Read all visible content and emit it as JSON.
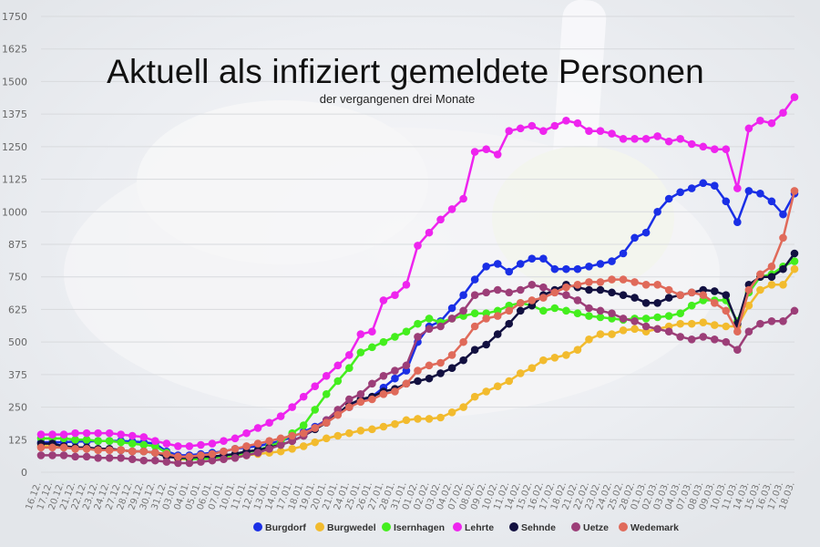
{
  "chart_data": {
    "type": "line",
    "title": "Aktuell als infiziert gemeldete Personen",
    "subtitle": "der vergangenen drei Monate",
    "xlabel": "",
    "ylabel": "",
    "ylim": [
      0,
      1750
    ],
    "yticks": [
      0,
      125,
      250,
      375,
      500,
      625,
      750,
      875,
      1000,
      1125,
      1250,
      1375,
      1500,
      1625,
      1750
    ],
    "grid": true,
    "legend_position": "bottom",
    "x_tick_labels": [
      "16.12.",
      "17.12.",
      "20.12.",
      "21.12.",
      "22.12.",
      "23.12.",
      "24.12.",
      "27.12.",
      "28.12.",
      "29.12.",
      "30.12.",
      "31.12.",
      "03.01.",
      "04.01.",
      "05.01.",
      "06.01.",
      "07.01.",
      "10.01.",
      "11.01.",
      "12.01.",
      "13.01.",
      "14.01.",
      "17.01.",
      "18.01.",
      "19.01.",
      "20.01.",
      "21.01.",
      "24.01.",
      "25.01.",
      "26.01.",
      "27.01.",
      "28.01.",
      "31.01.",
      "01.02.",
      "02.02.",
      "03.02.",
      "04.02.",
      "07.02.",
      "08.02.",
      "09.02.",
      "10.02.",
      "11.02.",
      "14.02.",
      "15.02.",
      "16.02.",
      "17.02.",
      "18.02.",
      "21.02.",
      "22.02.",
      "23.02.",
      "24.02.",
      "25.02.",
      "28.02.",
      "01.03.",
      "02.03.",
      "03.03.",
      "04.03.",
      "07.03.",
      "08.03.",
      "09.03.",
      "10.03.",
      "11.03.",
      "14.03.",
      "15.03.",
      "16.03.",
      "17.03.",
      "18.03."
    ],
    "series": [
      {
        "name": "Burgdorf",
        "color": "#1a2fe6",
        "values": [
          115,
          115,
          115,
          118,
          118,
          120,
          120,
          120,
          118,
          115,
          110,
          80,
          65,
          65,
          70,
          75,
          80,
          90,
          95,
          100,
          110,
          120,
          135,
          155,
          175,
          200,
          225,
          250,
          275,
          290,
          325,
          360,
          390,
          500,
          560,
          580,
          630,
          680,
          740,
          790,
          800,
          770,
          800,
          820,
          820,
          780,
          780,
          780,
          790,
          800,
          810,
          840,
          900,
          920,
          1000,
          1050,
          1075,
          1090,
          1110,
          1100,
          1040,
          960,
          1080,
          1070,
          1040,
          990,
          1070
        ]
      },
      {
        "name": "Burgwedel",
        "color": "#f2bb2e",
        "values": [
          100,
          100,
          95,
          90,
          90,
          85,
          85,
          85,
          80,
          80,
          75,
          70,
          50,
          50,
          55,
          55,
          60,
          60,
          65,
          70,
          75,
          80,
          90,
          100,
          115,
          130,
          140,
          150,
          160,
          165,
          175,
          185,
          200,
          205,
          205,
          210,
          230,
          250,
          290,
          310,
          330,
          350,
          380,
          400,
          430,
          440,
          450,
          470,
          510,
          530,
          530,
          545,
          550,
          540,
          550,
          560,
          570,
          570,
          575,
          565,
          560,
          560,
          640,
          700,
          720,
          720,
          780
        ]
      },
      {
        "name": "Isernhagen",
        "color": "#44ee1e",
        "values": [
          130,
          130,
          130,
          125,
          125,
          120,
          120,
          115,
          110,
          105,
          100,
          75,
          55,
          50,
          50,
          55,
          60,
          65,
          75,
          85,
          100,
          115,
          150,
          180,
          240,
          300,
          350,
          400,
          460,
          480,
          500,
          520,
          540,
          570,
          590,
          575,
          590,
          600,
          610,
          610,
          620,
          640,
          650,
          640,
          620,
          630,
          620,
          610,
          600,
          595,
          590,
          585,
          590,
          590,
          595,
          600,
          610,
          640,
          660,
          660,
          660,
          580,
          690,
          750,
          760,
          790,
          810
        ]
      },
      {
        "name": "Lehrte",
        "color": "#ee24ee",
        "values": [
          145,
          145,
          145,
          150,
          150,
          150,
          150,
          145,
          140,
          135,
          120,
          110,
          100,
          100,
          105,
          110,
          120,
          130,
          150,
          170,
          190,
          215,
          250,
          290,
          330,
          370,
          410,
          450,
          530,
          540,
          660,
          680,
          720,
          870,
          920,
          970,
          1010,
          1050,
          1230,
          1240,
          1220,
          1310,
          1320,
          1330,
          1310,
          1330,
          1350,
          1340,
          1310,
          1310,
          1300,
          1280,
          1280,
          1280,
          1290,
          1270,
          1280,
          1260,
          1250,
          1240,
          1240,
          1090,
          1320,
          1350,
          1340,
          1380,
          1440
        ]
      },
      {
        "name": "Sehnde",
        "color": "#121040",
        "values": [
          110,
          110,
          100,
          95,
          95,
          90,
          90,
          85,
          80,
          80,
          75,
          60,
          55,
          55,
          60,
          60,
          65,
          70,
          80,
          85,
          95,
          105,
          120,
          140,
          165,
          190,
          225,
          260,
          280,
          290,
          310,
          320,
          340,
          350,
          360,
          380,
          400,
          430,
          470,
          490,
          530,
          570,
          620,
          640,
          680,
          700,
          720,
          710,
          700,
          700,
          690,
          680,
          670,
          650,
          650,
          670,
          680,
          690,
          700,
          695,
          680,
          570,
          720,
          750,
          750,
          780,
          840
        ]
      },
      {
        "name": "Uetze",
        "color": "#9c3e78",
        "values": [
          65,
          65,
          65,
          60,
          60,
          55,
          55,
          55,
          50,
          45,
          45,
          40,
          35,
          35,
          40,
          45,
          50,
          55,
          65,
          75,
          90,
          105,
          120,
          140,
          170,
          200,
          240,
          280,
          300,
          340,
          370,
          390,
          410,
          520,
          550,
          560,
          590,
          620,
          680,
          690,
          700,
          690,
          700,
          720,
          710,
          690,
          680,
          660,
          630,
          620,
          610,
          590,
          580,
          560,
          550,
          540,
          520,
          510,
          520,
          510,
          500,
          470,
          540,
          570,
          580,
          580,
          620
        ]
      },
      {
        "name": "Wedemark",
        "color": "#e06a5a",
        "values": [
          95,
          95,
          95,
          90,
          90,
          85,
          85,
          85,
          80,
          80,
          75,
          70,
          60,
          60,
          65,
          70,
          80,
          90,
          100,
          110,
          120,
          130,
          140,
          150,
          170,
          190,
          220,
          250,
          270,
          280,
          300,
          310,
          340,
          390,
          410,
          420,
          450,
          500,
          560,
          590,
          600,
          620,
          650,
          660,
          670,
          690,
          710,
          720,
          730,
          730,
          740,
          740,
          730,
          720,
          720,
          700,
          680,
          690,
          680,
          650,
          620,
          540,
          700,
          760,
          790,
          900,
          1080
        ]
      }
    ]
  }
}
